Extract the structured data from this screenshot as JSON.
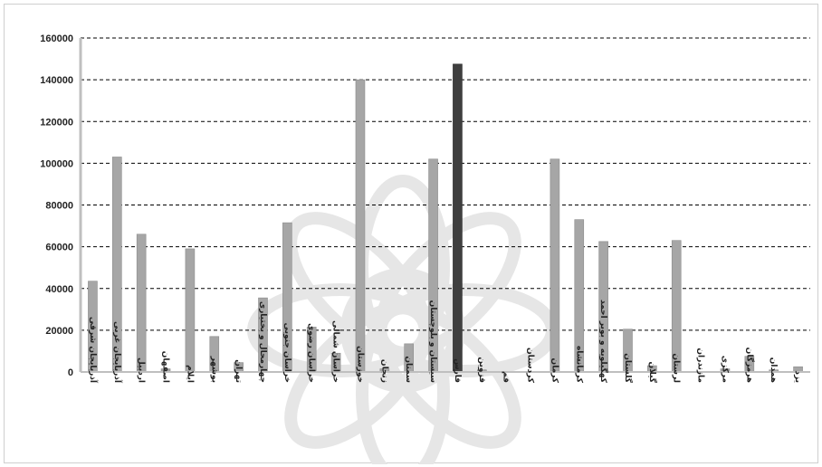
{
  "chart_data": {
    "type": "bar",
    "title": "",
    "xlabel": "",
    "ylabel": "",
    "ylim": [
      0,
      160000
    ],
    "yticks": [
      0,
      20000,
      40000,
      60000,
      80000,
      100000,
      120000,
      140000,
      160000
    ],
    "grid": "horizontal dashed",
    "legend": "none",
    "categories": [
      "آذربایجان شرقی",
      "آذربایجان غربی",
      "اردبیل",
      "اصفهان",
      "ایلام",
      "بوشهر",
      "تهران",
      "چهارمحال و بختیاری",
      "خراسان جنوبی",
      "خراسان رضوی",
      "خراسان شمالی",
      "خوزستان",
      "زنجان",
      "سمنان",
      "سیستان و بلوچستان",
      "فارس",
      "قزوین",
      "قم",
      "کردستان",
      "کرمان",
      "کرمانشاه",
      "کهگیلویه و بویر احمد",
      "گلستان",
      "گیلان",
      "لرستان",
      "مازندران",
      "مرکزی",
      "هرمزگان",
      "همدان",
      "یزد"
    ],
    "values": [
      43500,
      103000,
      66000,
      1500,
      59000,
      17000,
      4500,
      35500,
      71500,
      21500,
      9000,
      140000,
      1500,
      13500,
      102000,
      147500,
      1000,
      200,
      200,
      102000,
      73000,
      62500,
      20500,
      3000,
      63000,
      200,
      1500,
      7500,
      1000,
      2500
    ],
    "highlight_index": 15,
    "colors": {
      "bar": "#a6a6a6",
      "highlight": "#3f3f3f",
      "grid": "#000000",
      "axis": "#bfbfbf",
      "watermark": "#e6e6e6"
    }
  }
}
